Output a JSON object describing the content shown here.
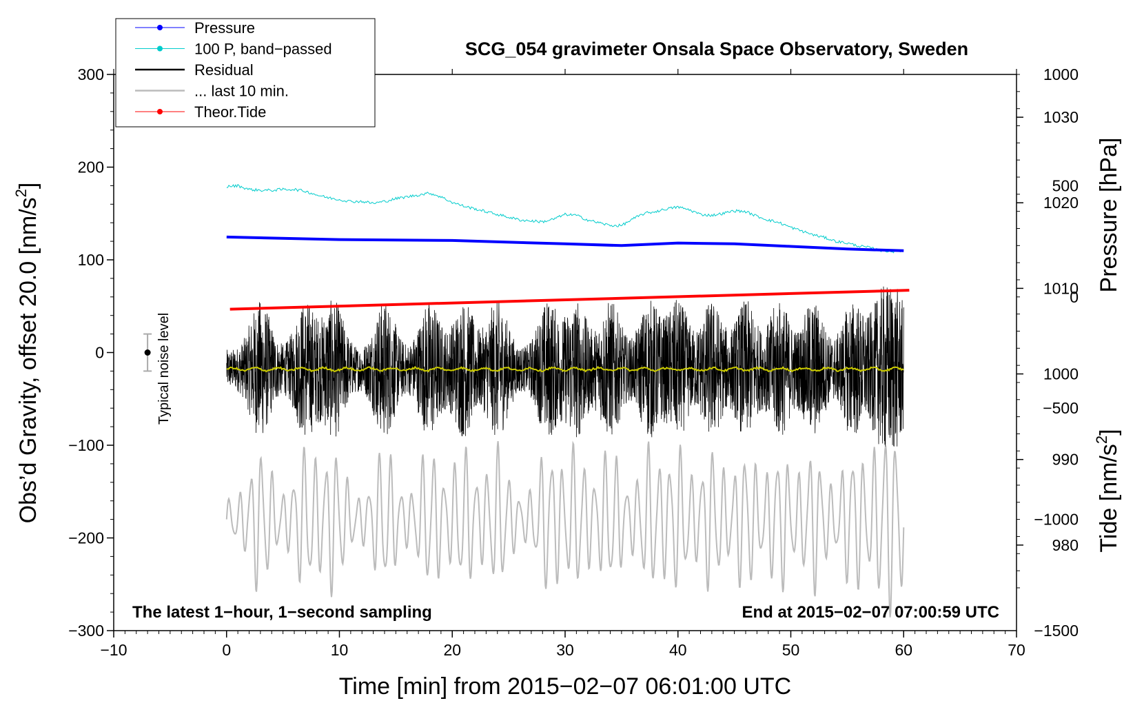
{
  "chart_data": {
    "type": "line",
    "title": "SCG_054 gravimeter Onsala Space Observatory, Sweden",
    "xlabel": "Time [min] from 2015−02−07 06:01:00 UTC",
    "ylabel": "Obs’d Gravity, offset 20.0 [nm/s²]",
    "ylabel_parts": [
      "Obs’d Gravity, offset 20.0 [nm/s",
      "2",
      "]"
    ],
    "y2label": "Pressure [hPa]",
    "y3label_parts": [
      "Tide [nm/s",
      "2",
      "]"
    ],
    "xlim": [
      -10,
      70
    ],
    "ylim": [
      -300,
      300
    ],
    "pressure_axis_range": [
      970,
      1035
    ],
    "tide_axis_range": [
      -1500,
      1000
    ],
    "x_ticks": [
      "−10",
      "0",
      "10",
      "20",
      "30",
      "40",
      "50",
      "60",
      "70"
    ],
    "x_tick_values": [
      -10,
      0,
      10,
      20,
      30,
      40,
      50,
      60,
      70
    ],
    "y_ticks": [
      "300",
      "200",
      "100",
      "0",
      "−100",
      "−200",
      "−300"
    ],
    "y_tick_values": [
      300,
      200,
      100,
      0,
      -100,
      -200,
      -300
    ],
    "pressure_ticks": [
      "1030",
      "1020",
      "1010",
      "1000",
      "990",
      "980"
    ],
    "pressure_tick_values": [
      1030,
      1020,
      1010,
      1000,
      990,
      980
    ],
    "tide_ticks": [
      "1000",
      "500",
      "0",
      "−500",
      "−1000",
      "−1500"
    ],
    "tide_tick_values": [
      1000,
      500,
      0,
      -500,
      -1000,
      -1500
    ],
    "legend": [
      {
        "label": "Pressure",
        "color": "#0000ff",
        "marker": true
      },
      {
        "label": "100 P, band−passed",
        "color": "#00cccc",
        "marker": true
      },
      {
        "label": "Residual",
        "color": "#000000",
        "marker": false
      },
      {
        "label": "... last 10 min.",
        "color": "#bbbbbb",
        "marker": false
      },
      {
        "label": "Theor.Tide",
        "color": "#ff0000",
        "marker": true
      }
    ],
    "legend_position": "top-left",
    "annotation_left": "The latest 1−hour, 1−second sampling",
    "annotation_right": "End at 2015−02−07 07:00:59 UTC",
    "noise_label": "Typical noise level",
    "noise_bar": {
      "x": -7,
      "center": 0,
      "half_range": 20
    },
    "series": [
      {
        "name": "Pressure",
        "axis": "pressure",
        "color": "#0000ff",
        "x": [
          0,
          10,
          20,
          30,
          35,
          40,
          45,
          50,
          55,
          60
        ],
        "values": [
          1016.0,
          1015.7,
          1015.6,
          1015.2,
          1015.0,
          1015.3,
          1015.2,
          1014.9,
          1014.6,
          1014.4
        ]
      },
      {
        "name": "100 P, band−passed",
        "axis": "gravity",
        "color": "#00cccc",
        "x": [
          0,
          1,
          2,
          3,
          4,
          5,
          6,
          7,
          8,
          9,
          10,
          11,
          12,
          13,
          14,
          15,
          16,
          17,
          18,
          19,
          20,
          21,
          22,
          23,
          24,
          25,
          26,
          27,
          28,
          29,
          30,
          31,
          32,
          33,
          34,
          35,
          36,
          37,
          38,
          39,
          40,
          41,
          42,
          43,
          44,
          45,
          46,
          47,
          48,
          49,
          50,
          51,
          52,
          53,
          54,
          55,
          56,
          57,
          58,
          59,
          60
        ],
        "values": [
          179,
          180,
          176,
          175,
          175,
          176,
          176,
          174,
          170,
          167,
          165,
          163,
          163,
          161,
          163,
          166,
          168,
          170,
          172,
          168,
          162,
          158,
          155,
          152,
          149,
          146,
          143,
          142,
          141,
          144,
          149,
          148,
          143,
          140,
          137,
          137,
          144,
          150,
          152,
          155,
          157,
          154,
          149,
          148,
          150,
          153,
          152,
          147,
          143,
          140,
          135,
          131,
          127,
          124,
          120,
          118,
          115,
          113,
          110,
          109,
          110
        ]
      },
      {
        "name": "Theor.Tide",
        "axis": "tide",
        "color": "#ff0000",
        "x": [
          0.3,
          60.5
        ],
        "values": [
          -55,
          30
        ]
      },
      {
        "name": "Residual",
        "axis": "gravity",
        "color": "#000000",
        "x_range": [
          0,
          60
        ],
        "approx_center": -18,
        "approx_amplitude": 60
      },
      {
        "name": "... last 10 min.",
        "axis": "gravity",
        "color": "#bbbbbb",
        "x_range": [
          0,
          60
        ],
        "approx_center": -180,
        "approx_amplitude": 60
      }
    ]
  }
}
